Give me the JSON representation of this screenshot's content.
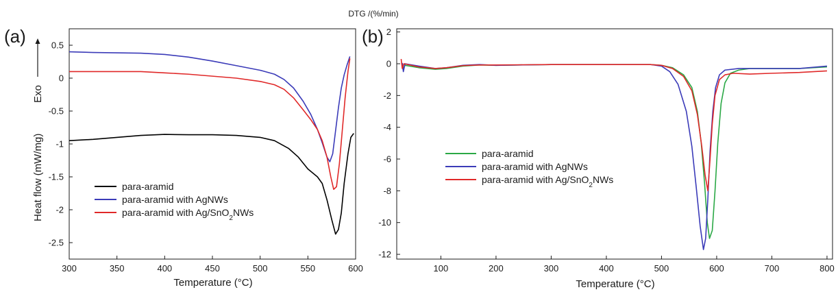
{
  "chart_data": [
    {
      "type": "line",
      "panel_label": "(a)",
      "xlabel": "Temperature (°C)",
      "ylabel": "Heat flow (mW/mg)",
      "ylabel_extra": "Exo",
      "xlim": [
        300,
        600
      ],
      "ylim": [
        -2.75,
        0.75
      ],
      "xticks": [
        300,
        350,
        400,
        450,
        500,
        550,
        600
      ],
      "yticks": [
        -2.5,
        -2,
        -1.5,
        -1,
        -0.5,
        0,
        0.5
      ],
      "xtick_labels": [
        "300",
        "350",
        "400",
        "450",
        "500",
        "550",
        "600"
      ],
      "ytick_labels": [
        "-2.5",
        "-2",
        "-1.5",
        "-1",
        "-0.5",
        "0",
        "0.5"
      ],
      "legend_position": "lower-left",
      "series": [
        {
          "name": "para-aramid",
          "color": "#000000",
          "points": [
            [
              300,
              -0.95
            ],
            [
              325,
              -0.93
            ],
            [
              350,
              -0.9
            ],
            [
              375,
              -0.87
            ],
            [
              400,
              -0.855
            ],
            [
              425,
              -0.86
            ],
            [
              450,
              -0.86
            ],
            [
              475,
              -0.87
            ],
            [
              500,
              -0.9
            ],
            [
              515,
              -0.95
            ],
            [
              530,
              -1.07
            ],
            [
              540,
              -1.2
            ],
            [
              550,
              -1.38
            ],
            [
              560,
              -1.5
            ],
            [
              565,
              -1.6
            ],
            [
              570,
              -1.85
            ],
            [
              575,
              -2.15
            ],
            [
              579,
              -2.37
            ],
            [
              582,
              -2.3
            ],
            [
              585,
              -2.05
            ],
            [
              588,
              -1.6
            ],
            [
              592,
              -1.15
            ],
            [
              595,
              -0.9
            ],
            [
              598,
              -0.84
            ]
          ]
        },
        {
          "name": "para-aramid with AgNWs",
          "color": "#3a3ab8",
          "points": [
            [
              300,
              0.4
            ],
            [
              325,
              0.39
            ],
            [
              350,
              0.385
            ],
            [
              375,
              0.38
            ],
            [
              400,
              0.36
            ],
            [
              425,
              0.32
            ],
            [
              450,
              0.26
            ],
            [
              475,
              0.19
            ],
            [
              500,
              0.12
            ],
            [
              515,
              0.06
            ],
            [
              525,
              -0.02
            ],
            [
              535,
              -0.15
            ],
            [
              545,
              -0.35
            ],
            [
              553,
              -0.55
            ],
            [
              560,
              -0.78
            ],
            [
              565,
              -0.98
            ],
            [
              570,
              -1.2
            ],
            [
              573,
              -1.27
            ],
            [
              576,
              -1.15
            ],
            [
              579,
              -0.8
            ],
            [
              582,
              -0.45
            ],
            [
              585,
              -0.15
            ],
            [
              588,
              0.05
            ],
            [
              591,
              0.2
            ],
            [
              594,
              0.33
            ]
          ]
        },
        {
          "name": "para-aramid with Ag/SnO2NWs",
          "color": "#e02828",
          "points": [
            [
              300,
              0.1
            ],
            [
              325,
              0.1
            ],
            [
              350,
              0.1
            ],
            [
              375,
              0.1
            ],
            [
              400,
              0.08
            ],
            [
              425,
              0.06
            ],
            [
              450,
              0.03
            ],
            [
              475,
              0.0
            ],
            [
              500,
              -0.05
            ],
            [
              515,
              -0.1
            ],
            [
              525,
              -0.17
            ],
            [
              535,
              -0.3
            ],
            [
              545,
              -0.48
            ],
            [
              553,
              -0.63
            ],
            [
              560,
              -0.78
            ],
            [
              565,
              -0.95
            ],
            [
              570,
              -1.2
            ],
            [
              574,
              -1.5
            ],
            [
              577,
              -1.69
            ],
            [
              580,
              -1.65
            ],
            [
              583,
              -1.3
            ],
            [
              586,
              -0.8
            ],
            [
              589,
              -0.3
            ],
            [
              592,
              0.1
            ],
            [
              594,
              0.3
            ]
          ]
        }
      ]
    },
    {
      "type": "line",
      "panel_label": "(b)",
      "xlabel": "Temperature (°C)",
      "ylabel": "DTG /(%/min)",
      "xlim": [
        20,
        810
      ],
      "ylim": [
        -12.3,
        2.2
      ],
      "xticks": [
        100,
        200,
        300,
        400,
        500,
        600,
        700,
        800
      ],
      "yticks": [
        -12,
        -10,
        -8,
        -6,
        -4,
        -2,
        0,
        2
      ],
      "xtick_labels": [
        "100",
        "200",
        "300",
        "400",
        "500",
        "600",
        "700",
        "800"
      ],
      "ytick_labels": [
        "-12",
        "-10",
        "-8",
        "-6",
        "-4",
        "-2",
        "0",
        "2"
      ],
      "legend_position": "center-left",
      "series": [
        {
          "name": "para-aramid",
          "color": "#2aa845",
          "points": [
            [
              30,
              0.0
            ],
            [
              32,
              -0.3
            ],
            [
              35,
              -0.1
            ],
            [
              60,
              -0.25
            ],
            [
              90,
              -0.35
            ],
            [
              110,
              -0.3
            ],
            [
              140,
              -0.15
            ],
            [
              170,
              -0.08
            ],
            [
              200,
              -0.1
            ],
            [
              300,
              -0.05
            ],
            [
              400,
              -0.05
            ],
            [
              480,
              -0.05
            ],
            [
              500,
              -0.1
            ],
            [
              520,
              -0.25
            ],
            [
              540,
              -0.7
            ],
            [
              555,
              -1.5
            ],
            [
              565,
              -3.0
            ],
            [
              572,
              -5.0
            ],
            [
              578,
              -7.5
            ],
            [
              583,
              -10.0
            ],
            [
              587,
              -11.0
            ],
            [
              592,
              -10.5
            ],
            [
              597,
              -8.0
            ],
            [
              602,
              -5.0
            ],
            [
              608,
              -2.5
            ],
            [
              615,
              -1.2
            ],
            [
              625,
              -0.6
            ],
            [
              640,
              -0.4
            ],
            [
              660,
              -0.3
            ],
            [
              700,
              -0.3
            ],
            [
              750,
              -0.3
            ],
            [
              800,
              -0.2
            ]
          ]
        },
        {
          "name": "para-aramid with AgNWs",
          "color": "#3a3ab8",
          "points": [
            [
              30,
              0.05
            ],
            [
              32,
              -0.5
            ],
            [
              35,
              0.0
            ],
            [
              60,
              -0.15
            ],
            [
              90,
              -0.3
            ],
            [
              110,
              -0.25
            ],
            [
              140,
              -0.1
            ],
            [
              170,
              -0.05
            ],
            [
              200,
              -0.1
            ],
            [
              300,
              -0.05
            ],
            [
              400,
              -0.05
            ],
            [
              480,
              -0.05
            ],
            [
              500,
              -0.15
            ],
            [
              515,
              -0.5
            ],
            [
              530,
              -1.3
            ],
            [
              545,
              -3.0
            ],
            [
              555,
              -5.2
            ],
            [
              563,
              -7.8
            ],
            [
              570,
              -10.2
            ],
            [
              576,
              -11.7
            ],
            [
              580,
              -11.0
            ],
            [
              584,
              -8.5
            ],
            [
              588,
              -5.5
            ],
            [
              593,
              -3.0
            ],
            [
              598,
              -1.5
            ],
            [
              605,
              -0.7
            ],
            [
              615,
              -0.4
            ],
            [
              640,
              -0.3
            ],
            [
              700,
              -0.3
            ],
            [
              750,
              -0.3
            ],
            [
              800,
              -0.15
            ]
          ]
        },
        {
          "name": "para-aramid with Ag/SnO2NWs",
          "color": "#e02828",
          "points": [
            [
              28,
              0.3
            ],
            [
              30,
              -0.3
            ],
            [
              33,
              0.0
            ],
            [
              60,
              -0.2
            ],
            [
              90,
              -0.3
            ],
            [
              110,
              -0.25
            ],
            [
              140,
              -0.12
            ],
            [
              170,
              -0.08
            ],
            [
              200,
              -0.08
            ],
            [
              300,
              -0.05
            ],
            [
              400,
              -0.05
            ],
            [
              480,
              -0.05
            ],
            [
              500,
              -0.1
            ],
            [
              520,
              -0.3
            ],
            [
              540,
              -0.8
            ],
            [
              555,
              -1.7
            ],
            [
              565,
              -3.2
            ],
            [
              573,
              -5.2
            ],
            [
              579,
              -7.0
            ],
            [
              584,
              -8.0
            ],
            [
              588,
              -6.0
            ],
            [
              592,
              -3.8
            ],
            [
              597,
              -2.0
            ],
            [
              605,
              -1.0
            ],
            [
              615,
              -0.7
            ],
            [
              630,
              -0.6
            ],
            [
              660,
              -0.65
            ],
            [
              700,
              -0.6
            ],
            [
              750,
              -0.55
            ],
            [
              800,
              -0.45
            ]
          ]
        }
      ]
    }
  ]
}
